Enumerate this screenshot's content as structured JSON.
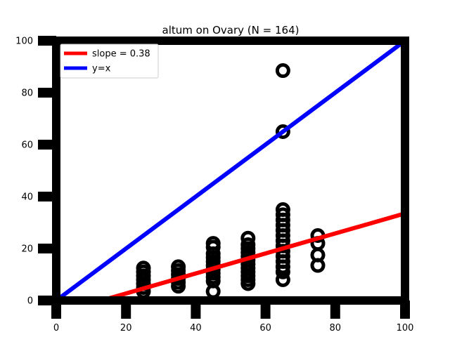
{
  "chart_data": {
    "type": "scatter",
    "title": "altum on Ovary (N = 164)",
    "xlabel": "",
    "ylabel": "",
    "xlim": [
      0,
      100
    ],
    "ylim": [
      0,
      100
    ],
    "xticks": [
      "0",
      "20",
      "40",
      "60",
      "80",
      "100"
    ],
    "yticks": [
      "0",
      "20",
      "40",
      "60",
      "80",
      "100"
    ],
    "grid": false,
    "legend_position": "top-left",
    "series": [
      {
        "kind": "points",
        "marker": "ring",
        "color": "#000000",
        "points": [
          [
            25,
            3.5
          ],
          [
            25,
            5
          ],
          [
            25,
            6.5
          ],
          [
            25,
            8
          ],
          [
            25,
            9.5
          ],
          [
            25,
            11
          ],
          [
            25,
            12.5
          ],
          [
            35,
            5.5
          ],
          [
            35,
            7
          ],
          [
            35,
            8.5
          ],
          [
            35,
            10
          ],
          [
            35,
            11.5
          ],
          [
            35,
            13
          ],
          [
            45,
            3.5
          ],
          [
            45,
            7.5
          ],
          [
            45,
            9
          ],
          [
            45,
            10.5
          ],
          [
            45,
            12
          ],
          [
            45,
            13.5
          ],
          [
            45,
            15
          ],
          [
            45,
            16.5
          ],
          [
            45,
            18
          ],
          [
            45,
            20.5
          ],
          [
            45,
            22
          ],
          [
            55,
            6.5
          ],
          [
            55,
            8
          ],
          [
            55,
            9.5
          ],
          [
            55,
            11
          ],
          [
            55,
            12.5
          ],
          [
            55,
            14
          ],
          [
            55,
            15.5
          ],
          [
            55,
            17
          ],
          [
            55,
            18.5
          ],
          [
            55,
            20
          ],
          [
            55,
            21.5
          ],
          [
            55,
            24
          ],
          [
            65,
            8
          ],
          [
            65,
            11
          ],
          [
            65,
            13
          ],
          [
            65,
            15
          ],
          [
            65,
            17
          ],
          [
            65,
            19
          ],
          [
            65,
            21
          ],
          [
            65,
            23
          ],
          [
            65,
            25
          ],
          [
            65,
            27
          ],
          [
            65,
            29
          ],
          [
            65,
            31
          ],
          [
            65,
            33
          ],
          [
            65,
            35
          ],
          [
            65,
            65
          ],
          [
            65,
            88.5
          ],
          [
            75,
            13.5
          ],
          [
            75,
            17.5
          ],
          [
            75,
            22
          ],
          [
            75,
            25
          ]
        ]
      },
      {
        "name": "slope = 0.38",
        "kind": "line",
        "color": "#ff0000",
        "x": [
          0,
          100
        ],
        "y": [
          -5,
          33.5
        ]
      },
      {
        "name": "y=x",
        "kind": "line",
        "color": "#0000ff",
        "x": [
          0,
          100
        ],
        "y": [
          0,
          100
        ]
      }
    ]
  }
}
